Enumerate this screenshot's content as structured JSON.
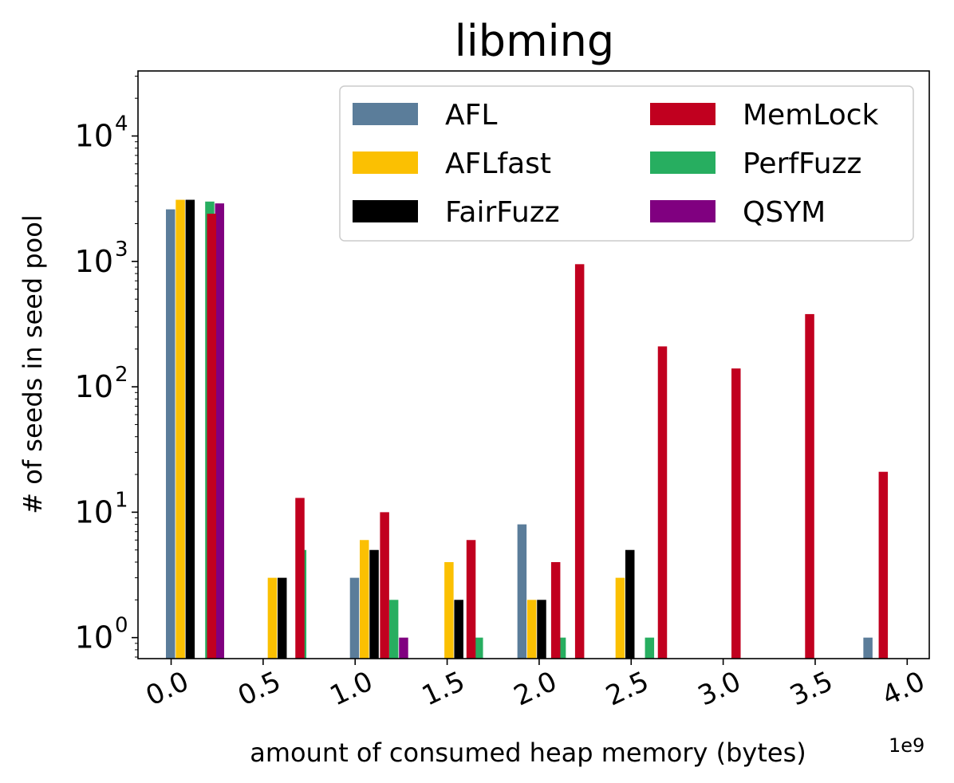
{
  "chart_data": {
    "type": "bar",
    "title": "libming",
    "xlabel": "amount of consumed heap memory (bytes)",
    "x_offset_label": "1e9",
    "ylabel": "# of seeds in seed pool",
    "yscale": "log",
    "ylim": [
      0.68,
      33000
    ],
    "xlim": [
      -0.18,
      4.12
    ],
    "x_ticks": [
      0.0,
      0.5,
      1.0,
      1.5,
      2.0,
      2.5,
      3.0,
      3.5,
      4.0
    ],
    "x_tick_labels": [
      "0.0",
      "0.5",
      "1.0",
      "1.5",
      "2.0",
      "2.5",
      "3.0",
      "3.5",
      "4.0"
    ],
    "y_ticks": [
      1,
      10,
      100,
      1000,
      10000
    ],
    "y_tick_labels": [
      {
        "base": "10",
        "exp": "0"
      },
      {
        "base": "10",
        "exp": "1"
      },
      {
        "base": "10",
        "exp": "2"
      },
      {
        "base": "10",
        "exp": "3"
      },
      {
        "base": "10",
        "exp": "4"
      }
    ],
    "legend": {
      "position": "upper-right",
      "columns": 2
    },
    "grid": false,
    "bin_centers": [
      0.13,
      0.63,
      1.13,
      1.59,
      2.04,
      2.52,
      3.0,
      3.48,
      3.92
    ],
    "series": [
      {
        "name": "AFL",
        "color": "#5b7d9a",
        "values": [
          2600,
          null,
          3,
          null,
          8,
          null,
          null,
          null,
          1
        ]
      },
      {
        "name": "AFLfast",
        "color": "#fbc002",
        "values": [
          3100,
          3,
          6,
          4,
          2,
          3,
          null,
          null,
          null
        ]
      },
      {
        "name": "FairFuzz",
        "color": "#000000",
        "values": [
          3100,
          3,
          5,
          2,
          2,
          5,
          null,
          null,
          null
        ]
      },
      {
        "name": "MemLock",
        "color": "#c1001f",
        "values": [
          2400,
          13,
          10,
          6,
          4,
          950,
          210,
          140,
          380,
          21
        ]
      },
      {
        "name": "PerfFuzz",
        "color": "#27ae60",
        "values": [
          3000,
          5,
          2,
          1,
          1,
          1,
          null,
          null,
          null
        ]
      },
      {
        "name": "QSYM",
        "color": "#800080",
        "values": [
          2900,
          null,
          1,
          null,
          null,
          null,
          null,
          null,
          null
        ]
      }
    ],
    "memlock_positions": [
      0.22,
      0.7,
      1.16,
      1.63,
      2.09,
      2.22,
      2.67,
      3.07,
      3.47,
      3.87
    ]
  }
}
